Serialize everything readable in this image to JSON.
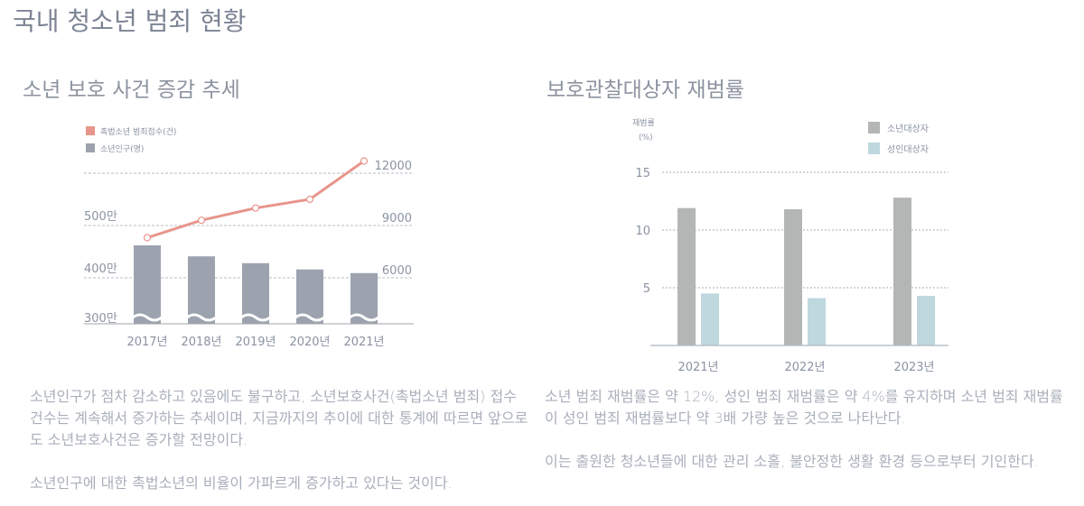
{
  "page": {
    "title": "국내 청소년 범죄 현황"
  },
  "left": {
    "subtitle": "소년 보호 사건 증감 추세",
    "paragraphs": [
      "소년인구가 점차 감소하고 있음에도 불구하고, 소년보호사건(촉법소년 범죄) 접수 건수는 계속해서 증가하는 추세이며, 지금까지의 추이에 대한 통계에 따르면 앞으로도 소년보호사건은 증가할 전망이다.",
      "소년인구에 대한 촉법소년의 비율이 가파르게 증가하고 있다는 것이다."
    ]
  },
  "right": {
    "subtitle": "보호관찰대상자 재범률",
    "paragraphs": [
      "소년 범죄 재범률은 약 12%, 성인 범죄 재범률은 약 4%를 유지하며 소년 범죄 재범률이 성인 범죄 재범률보다 약 3배 가량 높은 것으로 나타난다.",
      "이는 출원한 청소년들에 대한 관리 소홀, 불안정한 생활 환경 등으로부터 기인한다."
    ]
  },
  "chart_data": [
    {
      "type": "bar+line",
      "title": "소년 보호 사건 증감 추세",
      "categories": [
        "2017년",
        "2018년",
        "2019년",
        "2020년",
        "2021년"
      ],
      "legend": [
        "촉법소년 범죄접수(건)",
        "소년인구(명)"
      ],
      "series": [
        {
          "name": "소년인구(명)",
          "type": "bar",
          "unit": "만",
          "values": [
            462,
            441,
            428,
            416,
            409
          ],
          "color": "#9ca3ae"
        },
        {
          "name": "촉법소년 범죄접수(건)",
          "type": "line",
          "values": [
            8300,
            9300,
            10000,
            10500,
            12700
          ],
          "color": "#e8958b"
        }
      ],
      "left_axis": {
        "ticks": [
          "300만",
          "400만",
          "500만"
        ],
        "values": [
          300,
          400,
          500
        ]
      },
      "right_axis": {
        "ticks": [
          "6000",
          "9000",
          "12000"
        ],
        "values": [
          6000,
          9000,
          12000
        ]
      },
      "axis_break": true
    },
    {
      "type": "bar",
      "title": "보호관찰대상자 재범률",
      "ylabel": "재범률",
      "yunit": "(%)",
      "categories": [
        "2021년",
        "2022년",
        "2023년"
      ],
      "series": [
        {
          "name": "소년대상자",
          "values": [
            11.9,
            11.8,
            12.8
          ],
          "color": "#b4b5b5"
        },
        {
          "name": "성인대상자",
          "values": [
            4.5,
            4.1,
            4.3
          ],
          "color": "#bed8de"
        }
      ],
      "yticks": [
        5,
        10,
        15
      ],
      "ylim": [
        0,
        15
      ],
      "legend": "top-right",
      "grid": true
    }
  ]
}
